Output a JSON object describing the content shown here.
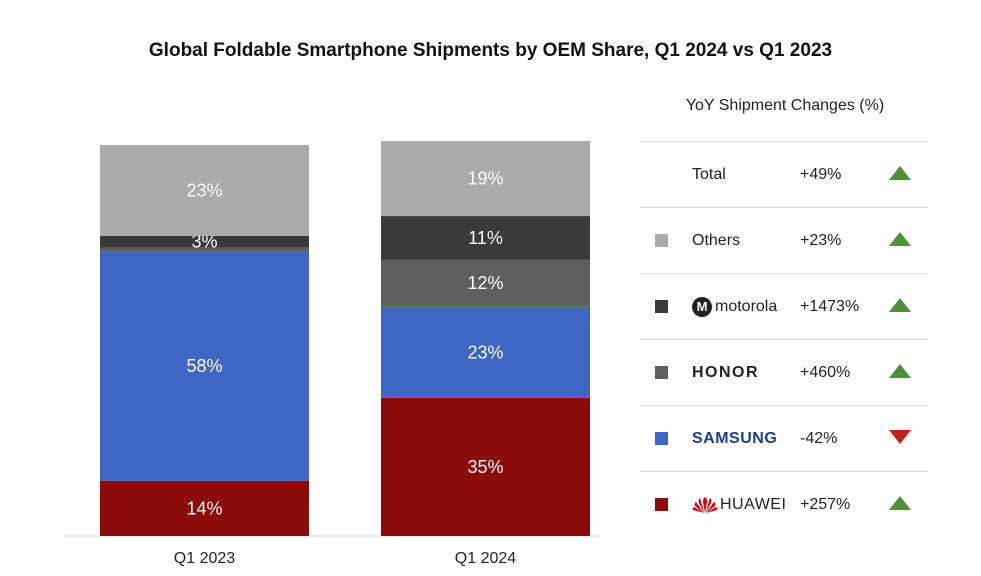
{
  "chart_data": {
    "type": "bar",
    "stacked": true,
    "title": "Global Foldable Smartphone Shipments by OEM Share, Q1 2024 vs Q1 2023",
    "categories": [
      "Q1 2023",
      "Q1 2024"
    ],
    "ylim": [
      0,
      100
    ],
    "series": [
      {
        "name": "HUAWEI",
        "values": [
          14,
          35
        ],
        "labels": [
          "14%",
          "35%"
        ],
        "color": "#8b0a0a"
      },
      {
        "name": "SAMSUNG",
        "values": [
          58,
          23
        ],
        "labels": [
          "58%",
          "23%"
        ],
        "color": "#3e66c4"
      },
      {
        "name": "HONOR",
        "values": [
          1,
          12
        ],
        "labels": [
          "",
          "12%"
        ],
        "color": "#5e5e5e"
      },
      {
        "name": "motorola",
        "values": [
          3,
          11
        ],
        "labels": [
          "3%",
          "11%"
        ],
        "color": "#3a3a3a"
      },
      {
        "name": "Others",
        "values": [
          23,
          19
        ],
        "labels": [
          "23%",
          "19%"
        ],
        "color": "#aaaaaa"
      }
    ],
    "grid": false,
    "legend_position": "right"
  },
  "table": {
    "header": "YoY Shipment Changes (%)",
    "rows": [
      {
        "name": "Total",
        "change": "+49%",
        "direction": "up",
        "swatch": "",
        "icon": ""
      },
      {
        "name": "Others",
        "change": "+23%",
        "direction": "up",
        "swatch": "#aaaaaa",
        "icon": ""
      },
      {
        "name": "motorola",
        "change": "+1473%",
        "direction": "up",
        "swatch": "#3a3a3a",
        "icon": "motorola-logo-icon"
      },
      {
        "name": "HONOR",
        "change": "+460%",
        "direction": "up",
        "swatch": "#5e5e5e",
        "icon": ""
      },
      {
        "name": "SAMSUNG",
        "change": "-42%",
        "direction": "down",
        "swatch": "#3e66c4",
        "icon": ""
      },
      {
        "name": "HUAWEI",
        "change": "+257%",
        "direction": "up",
        "swatch": "#8b0a0a",
        "icon": "huawei-logo-icon"
      }
    ],
    "motorola_logo_letter": "M"
  },
  "colors": {
    "up": "#4e8f3a",
    "down": "#c0211f"
  }
}
